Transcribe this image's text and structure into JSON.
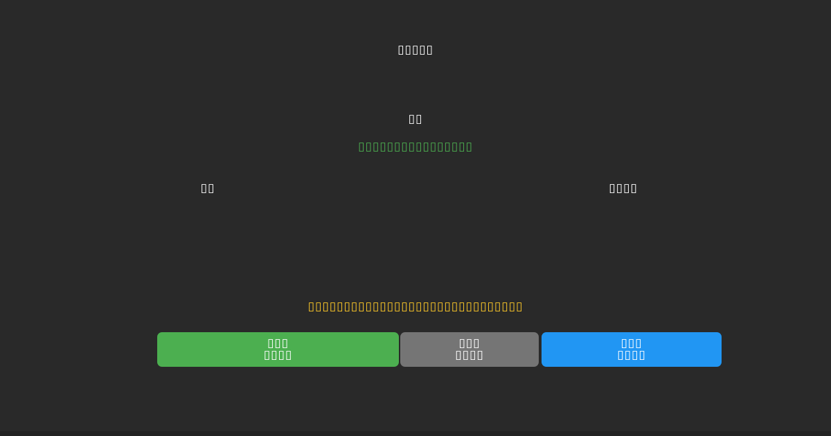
{
  "screen": {
    "background_color": "#292929",
    "bottom_bar_color": "#232323",
    "default_text_color": "#ffffff"
  },
  "header": {
    "title": "▯▯▯▯▯"
  },
  "status": {
    "label": "▯▯",
    "detail": "▯▯▯▯▯▯▯▯▯▯▯▯▯▯▯▯",
    "detail_color": "#4caf50"
  },
  "sections": {
    "left_label": "▯▯",
    "right_label": "▯▯▯▯"
  },
  "message": {
    "text": "▯▯▯▯▯▯▯▯▯▯▯▯▯▯▯▯▯▯▯▯▯▯▯▯▯▯▯▯▯▯",
    "color": "#ffca28"
  },
  "buttons": [
    {
      "id": "green",
      "line1": "▯▯▯",
      "line2": "▯▯▯▯",
      "background_color": "#4caf50",
      "text_color": "#ffffff"
    },
    {
      "id": "gray",
      "line1": "▯▯▯",
      "line2": "▯▯▯▯",
      "background_color": "#757575",
      "text_color": "#ffffff"
    },
    {
      "id": "blue",
      "line1": "▯▯▯",
      "line2": "▯▯▯▯",
      "background_color": "#2196f3",
      "text_color": "#ffffff"
    }
  ]
}
